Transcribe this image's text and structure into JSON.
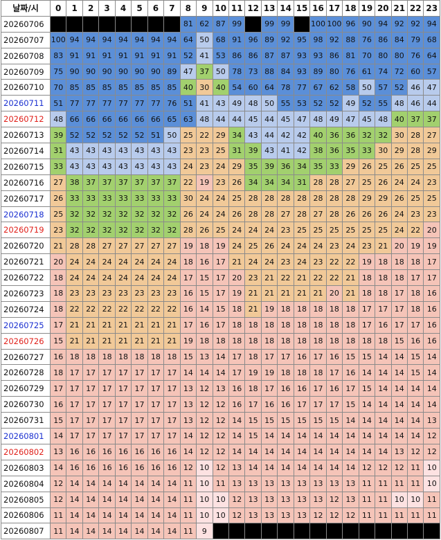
{
  "table": {
    "header": [
      "날짜/시",
      "0",
      "1",
      "2",
      "3",
      "4",
      "5",
      "6",
      "7",
      "8",
      "9",
      "10",
      "11",
      "12",
      "13",
      "14",
      "15",
      "16",
      "17",
      "18",
      "19",
      "20",
      "21",
      "22",
      "23"
    ],
    "rows": [
      {
        "date": "20260706",
        "values": [
          null,
          null,
          null,
          null,
          null,
          null,
          null,
          null,
          81,
          62,
          87,
          99,
          null,
          99,
          99,
          null,
          100,
          100,
          96,
          90,
          94,
          92,
          92,
          94
        ]
      },
      {
        "date": "20260707",
        "values": [
          100,
          94,
          94,
          94,
          94,
          94,
          94,
          94,
          64,
          50,
          68,
          91,
          96,
          89,
          92,
          95,
          98,
          92,
          88,
          76,
          86,
          84,
          79,
          68
        ]
      },
      {
        "date": "20260708",
        "values": [
          83,
          91,
          91,
          91,
          91,
          91,
          91,
          91,
          52,
          41,
          53,
          86,
          86,
          87,
          87,
          93,
          93,
          86,
          81,
          70,
          80,
          80,
          76,
          64
        ]
      },
      {
        "date": "20260709",
        "values": [
          75,
          90,
          90,
          90,
          90,
          90,
          90,
          89,
          47,
          37,
          50,
          78,
          73,
          88,
          84,
          93,
          89,
          80,
          76,
          61,
          74,
          72,
          60,
          57
        ]
      },
      {
        "date": "20260710",
        "values": [
          70,
          85,
          85,
          85,
          85,
          85,
          85,
          85,
          40,
          30,
          40,
          54,
          60,
          64,
          78,
          77,
          67,
          62,
          58,
          50,
          57,
          52,
          46,
          47
        ]
      },
      {
        "date": "20260711",
        "label_color": "#1a2fd0",
        "values": [
          51,
          77,
          77,
          77,
          77,
          77,
          77,
          76,
          51,
          41,
          43,
          49,
          48,
          50,
          55,
          53,
          52,
          52,
          49,
          52,
          55,
          48,
          46,
          44
        ]
      },
      {
        "date": "20260712",
        "label_color": "#e0201a",
        "values": [
          48,
          66,
          66,
          66,
          66,
          66,
          66,
          65,
          63,
          48,
          44,
          44,
          45,
          44,
          45,
          47,
          48,
          49,
          47,
          45,
          48,
          40,
          37,
          37
        ]
      },
      {
        "date": "20260713",
        "values": [
          39,
          52,
          52,
          52,
          52,
          52,
          51,
          50,
          25,
          22,
          29,
          34,
          43,
          44,
          42,
          42,
          40,
          36,
          36,
          32,
          32,
          30,
          28,
          27
        ]
      },
      {
        "date": "20260714",
        "values": [
          31,
          43,
          43,
          43,
          43,
          43,
          43,
          43,
          23,
          23,
          25,
          31,
          39,
          43,
          41,
          42,
          38,
          36,
          35,
          33,
          30,
          29,
          28,
          29
        ]
      },
      {
        "date": "20260715",
        "values": [
          33,
          43,
          43,
          43,
          43,
          43,
          43,
          43,
          24,
          23,
          24,
          29,
          35,
          39,
          36,
          34,
          35,
          33,
          29,
          26,
          25,
          26,
          25,
          25
        ]
      },
      {
        "date": "20260716",
        "values": [
          27,
          38,
          37,
          37,
          37,
          37,
          37,
          37,
          22,
          19,
          23,
          26,
          34,
          34,
          34,
          31,
          28,
          28,
          27,
          25,
          26,
          24,
          24,
          23
        ]
      },
      {
        "date": "20260717",
        "values": [
          26,
          33,
          33,
          33,
          33,
          33,
          33,
          33,
          30,
          24,
          24,
          25,
          28,
          28,
          28,
          28,
          28,
          28,
          28,
          29,
          29,
          26,
          25,
          25
        ]
      },
      {
        "date": "20260718",
        "label_color": "#1a2fd0",
        "values": [
          25,
          32,
          32,
          32,
          32,
          32,
          32,
          32,
          26,
          24,
          24,
          26,
          28,
          28,
          27,
          28,
          27,
          28,
          26,
          26,
          26,
          24,
          23,
          23
        ]
      },
      {
        "date": "20260719",
        "label_color": "#e0201a",
        "values": [
          23,
          32,
          32,
          32,
          32,
          32,
          32,
          32,
          28,
          26,
          25,
          24,
          24,
          24,
          23,
          25,
          25,
          25,
          25,
          25,
          25,
          24,
          22,
          20
        ]
      },
      {
        "date": "20260720",
        "values": [
          21,
          28,
          28,
          27,
          27,
          27,
          27,
          27,
          19,
          18,
          19,
          24,
          25,
          26,
          24,
          24,
          24,
          23,
          24,
          23,
          21,
          20,
          19,
          19
        ]
      },
      {
        "date": "20260721",
        "values": [
          20,
          24,
          24,
          24,
          24,
          24,
          24,
          24,
          18,
          16,
          17,
          21,
          24,
          24,
          23,
          24,
          23,
          22,
          22,
          19,
          18,
          18,
          18,
          17
        ]
      },
      {
        "date": "20260722",
        "values": [
          18,
          24,
          24,
          24,
          24,
          24,
          24,
          24,
          17,
          15,
          17,
          20,
          23,
          21,
          22,
          21,
          22,
          22,
          21,
          18,
          18,
          18,
          17,
          17
        ]
      },
      {
        "date": "20260723",
        "values": [
          18,
          23,
          23,
          23,
          23,
          23,
          23,
          23,
          16,
          15,
          17,
          19,
          21,
          21,
          21,
          21,
          21,
          20,
          21,
          18,
          18,
          17,
          18,
          16
        ]
      },
      {
        "date": "20260724",
        "values": [
          18,
          22,
          22,
          22,
          22,
          22,
          22,
          22,
          16,
          14,
          15,
          18,
          21,
          19,
          18,
          18,
          18,
          18,
          18,
          17,
          17,
          17,
          18,
          16
        ]
      },
      {
        "date": "20260725",
        "label_color": "#1a2fd0",
        "values": [
          17,
          21,
          21,
          21,
          21,
          21,
          21,
          21,
          17,
          16,
          17,
          18,
          18,
          18,
          18,
          18,
          18,
          18,
          18,
          17,
          16,
          17,
          17,
          16
        ]
      },
      {
        "date": "20260726",
        "label_color": "#e0201a",
        "values": [
          15,
          21,
          21,
          21,
          21,
          21,
          21,
          21,
          19,
          18,
          18,
          18,
          18,
          18,
          18,
          18,
          18,
          18,
          18,
          18,
          18,
          15,
          16,
          16
        ]
      },
      {
        "date": "20260727",
        "values": [
          16,
          18,
          18,
          18,
          18,
          18,
          18,
          18,
          15,
          13,
          14,
          17,
          18,
          17,
          17,
          16,
          17,
          16,
          15,
          15,
          14,
          14,
          15,
          14
        ]
      },
      {
        "date": "20260728",
        "values": [
          18,
          17,
          17,
          17,
          17,
          17,
          17,
          17,
          14,
          14,
          14,
          17,
          19,
          19,
          18,
          18,
          18,
          17,
          16,
          14,
          14,
          14,
          15,
          14
        ]
      },
      {
        "date": "20260729",
        "values": [
          17,
          17,
          17,
          17,
          17,
          17,
          17,
          17,
          13,
          12,
          13,
          16,
          18,
          17,
          16,
          16,
          17,
          16,
          17,
          15,
          14,
          14,
          14,
          14
        ]
      },
      {
        "date": "20260730",
        "values": [
          16,
          17,
          17,
          17,
          17,
          17,
          17,
          17,
          13,
          12,
          12,
          16,
          17,
          16,
          16,
          17,
          17,
          17,
          15,
          14,
          14,
          14,
          14,
          14
        ]
      },
      {
        "date": "20260731",
        "values": [
          15,
          17,
          17,
          17,
          17,
          17,
          17,
          17,
          13,
          12,
          12,
          14,
          15,
          15,
          15,
          15,
          15,
          15,
          14,
          14,
          14,
          14,
          14,
          13
        ]
      },
      {
        "date": "20260801",
        "label_color": "#1a2fd0",
        "values": [
          14,
          17,
          17,
          17,
          17,
          17,
          17,
          17,
          14,
          12,
          12,
          14,
          15,
          14,
          14,
          14,
          14,
          14,
          14,
          14,
          14,
          14,
          14,
          12
        ]
      },
      {
        "date": "20260802",
        "label_color": "#e0201a",
        "values": [
          13,
          16,
          16,
          16,
          16,
          16,
          16,
          16,
          14,
          12,
          12,
          14,
          14,
          14,
          14,
          14,
          14,
          14,
          14,
          14,
          14,
          13,
          12,
          12
        ]
      },
      {
        "date": "20260803",
        "values": [
          14,
          16,
          16,
          16,
          16,
          16,
          16,
          16,
          12,
          10,
          12,
          13,
          14,
          14,
          14,
          14,
          14,
          14,
          14,
          12,
          12,
          12,
          11,
          10
        ]
      },
      {
        "date": "20260804",
        "values": [
          12,
          14,
          14,
          14,
          14,
          14,
          14,
          14,
          11,
          10,
          11,
          13,
          13,
          13,
          13,
          13,
          13,
          13,
          13,
          11,
          11,
          11,
          11,
          10
        ]
      },
      {
        "date": "20260805",
        "values": [
          12,
          14,
          14,
          14,
          14,
          14,
          14,
          14,
          11,
          10,
          10,
          12,
          13,
          13,
          13,
          13,
          13,
          12,
          13,
          11,
          11,
          10,
          10,
          11
        ]
      },
      {
        "date": "20260806",
        "values": [
          11,
          14,
          14,
          14,
          14,
          14,
          14,
          14,
          11,
          10,
          10,
          12,
          13,
          13,
          13,
          13,
          12,
          12,
          12,
          11,
          11,
          11,
          11,
          11
        ]
      },
      {
        "date": "20260807",
        "values": [
          11,
          14,
          14,
          14,
          14,
          14,
          14,
          14,
          11,
          9,
          null,
          null,
          null,
          null,
          null,
          null,
          null,
          null,
          null,
          null,
          null,
          null,
          null,
          null
        ]
      }
    ]
  }
}
